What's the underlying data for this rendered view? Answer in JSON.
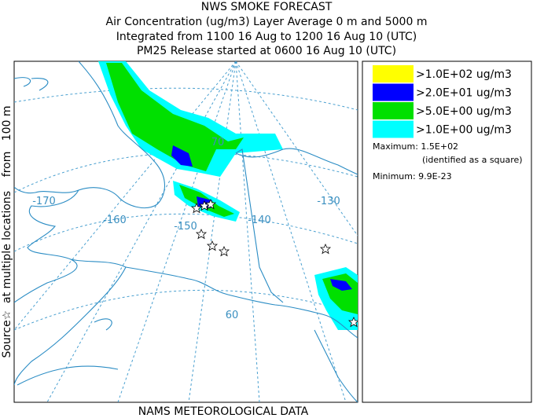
{
  "header": {
    "title": "NWS SMOKE FORECAST",
    "lines": [
      "Air Concentration (ug/m3) Layer Average    0 m and  5000 m",
      "Integrated from 1100 16 Aug to 1200 16 Aug 10 (UTC)",
      "PM25 Release started at 0600 16 Aug 10 (UTC)"
    ]
  },
  "side_label": "Source☆  at multiple locations    from   100 m",
  "map": {
    "labels": [
      "-170",
      "-160",
      "-150",
      "-140",
      "-130",
      "70",
      "60"
    ]
  },
  "legend": {
    "entries": [
      {
        "label": ">1.0E+02 ug/m3",
        "color": "#ffff00"
      },
      {
        "label": ">2.0E+01 ug/m3",
        "color": "#0000ff"
      },
      {
        "label": ">5.0E+00 ug/m3",
        "color": "#00e000"
      },
      {
        "label": ">1.0E+00 ug/m3",
        "color": "#00ffff"
      }
    ],
    "maximum": "Maximum: 1.5E+02",
    "maximum_note": "(identified as a square)",
    "minimum": "Minimum: 9.9E-23"
  },
  "footer": "NAMS METEOROLOGICAL DATA"
}
